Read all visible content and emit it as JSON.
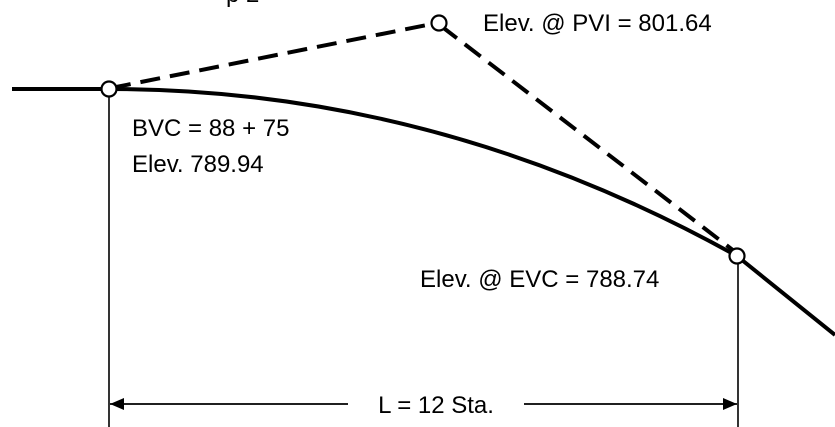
{
  "diagram": {
    "labels": {
      "pvi_elevation": "Elev. @ PVI = 801.64",
      "bvc_station": "BVC = 88 + 75",
      "bvc_elevation": "Elev. 789.94",
      "evc_elevation": "Elev. @ EVC = 788.74",
      "curve_length": "L = 12 Sta."
    },
    "colors": {
      "line": "#000000",
      "background": "#ffffff"
    }
  }
}
